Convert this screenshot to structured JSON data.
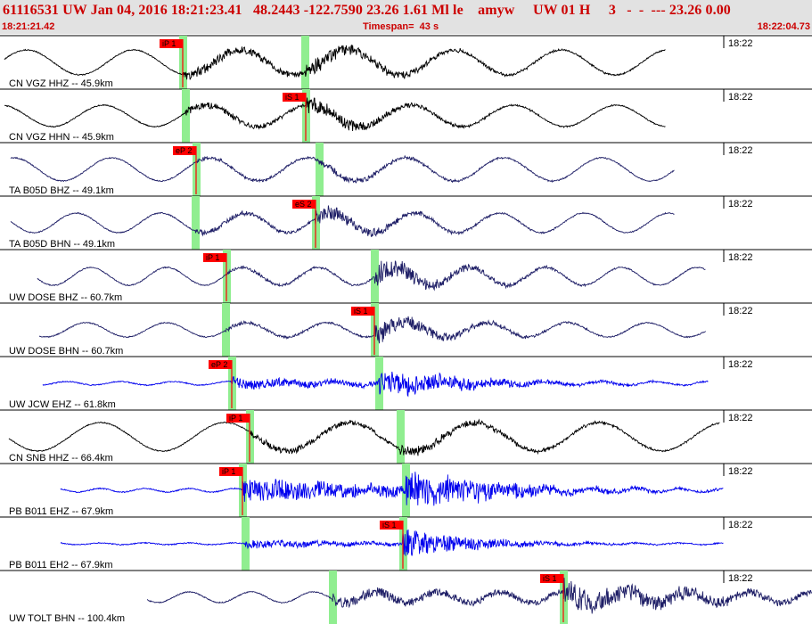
{
  "header": {
    "title_line": "61116531 UW Jan 04, 2016 18:21:23.41   48.2443 -122.7590 23.26 1.61 Ml le    amyw     UW 01 H     3   -  -  --- 23.26 0.00",
    "start_time": "18:21:21.42",
    "timespan": "Timespan=  43 s",
    "end_time": "18:22:04.73"
  },
  "colors": {
    "header_text": "#cc0000",
    "pick_flag": "#ff0000",
    "pick_window": "#90ee90",
    "trace_black": "#000000",
    "trace_navy": "#1e1e66",
    "trace_blue": "#0000ee"
  },
  "traces": [
    {
      "label": "CN VGZ HHZ -- 45.9km",
      "time_tick": "18:22",
      "color": "black",
      "picks": [
        {
          "label": "iP 1",
          "x": 205
        },
        {
          "label": "",
          "x": 342
        }
      ]
    },
    {
      "label": "CN VGZ HHN -- 45.9km",
      "time_tick": "18:22",
      "color": "black",
      "picks": [
        {
          "label": "",
          "x": 208
        },
        {
          "label": "iS 1",
          "x": 343
        }
      ]
    },
    {
      "label": "TA B05D BHZ -- 49.1km",
      "time_tick": "18:22",
      "color": "navy",
      "picks": [
        {
          "label": "eP 2",
          "x": 220
        },
        {
          "label": "",
          "x": 358
        }
      ]
    },
    {
      "label": "TA B05D BHN -- 49.1km",
      "time_tick": "18:22",
      "color": "navy",
      "picks": [
        {
          "label": "",
          "x": 219
        },
        {
          "label": "eS 2",
          "x": 354
        }
      ]
    },
    {
      "label": "UW DOSE BHZ -- 60.7km",
      "time_tick": "18:22",
      "color": "navy",
      "picks": [
        {
          "label": "iP 1",
          "x": 254
        },
        {
          "label": "",
          "x": 420
        }
      ]
    },
    {
      "label": "UW DOSE BHN -- 60.7km",
      "time_tick": "18:22",
      "color": "navy",
      "picks": [
        {
          "label": "",
          "x": 253
        },
        {
          "label": "iS 1",
          "x": 420
        }
      ]
    },
    {
      "label": "UW JCW EHZ -- 61.8km",
      "time_tick": "18:22",
      "color": "blue",
      "picks": [
        {
          "label": "eP 2",
          "x": 260
        },
        {
          "label": "",
          "x": 425
        }
      ]
    },
    {
      "label": "CN SNB HHZ -- 66.4km",
      "time_tick": "18:22",
      "color": "black",
      "picks": [
        {
          "label": "iP 1",
          "x": 280
        },
        {
          "label": "",
          "x": 449
        }
      ]
    },
    {
      "label": "PB B011 EHZ -- 67.9km",
      "time_tick": "18:22",
      "color": "blue",
      "picks": [
        {
          "label": "iP 1",
          "x": 272
        },
        {
          "label": "",
          "x": 455
        }
      ]
    },
    {
      "label": "PB B011 EH2 -- 67.9km",
      "time_tick": "18:22",
      "color": "blue",
      "picks": [
        {
          "label": "",
          "x": 275
        },
        {
          "label": "iS 1",
          "x": 452
        }
      ]
    },
    {
      "label": "UW TOLT BHN -- 100.4km",
      "time_tick": "18:22",
      "color": "navy",
      "picks": [
        {
          "label": "",
          "x": 373
        },
        {
          "label": "iS 1",
          "x": 632
        }
      ]
    }
  ]
}
